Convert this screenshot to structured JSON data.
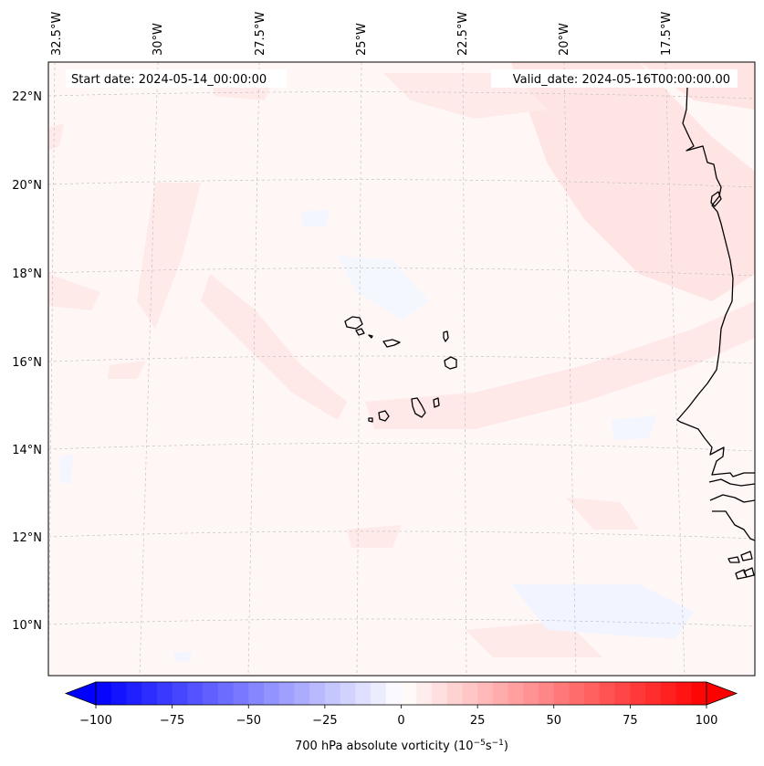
{
  "map": {
    "start_date": "Start date: 2024-05-14_00:00:00",
    "valid_date": "Valid_date: 2024-05-16T00:00:00.00",
    "longitude_labels": [
      "32.5°W",
      "30°W",
      "27.5°W",
      "25°W",
      "22.5°W",
      "20°W",
      "17.5°W"
    ],
    "latitude_labels": [
      "22°N",
      "20°N",
      "18°N",
      "16°N",
      "14°N",
      "12°N",
      "10°N"
    ],
    "region": "Cabo Verde / West Africa coast",
    "field_colors": {
      "background": "#fff6f6",
      "weak_positive": "#ffe4e4",
      "weak_negative": "#f3f5ff",
      "coast": "#000000"
    }
  },
  "colorbar": {
    "label": "700 hPa absolute vorticity (10",
    "label_exp1": "−5",
    "label_mid": "s",
    "label_exp2": "−1",
    "label_end": ")",
    "ticks": [
      "−100",
      "−75",
      "−50",
      "−25",
      "0",
      "25",
      "50",
      "75",
      "100"
    ],
    "min": -100,
    "max": 100,
    "step": 5,
    "neg_color": "#0000ff",
    "pos_color": "#ff0000"
  }
}
